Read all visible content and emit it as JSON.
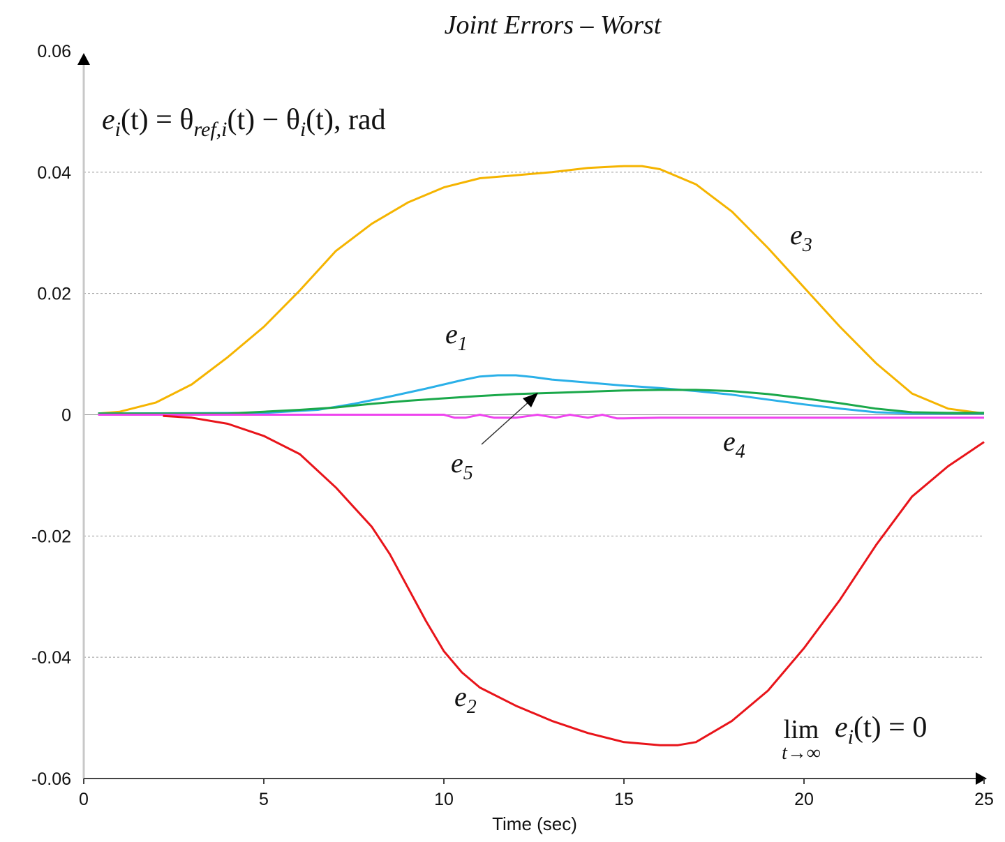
{
  "chart_data": {
    "type": "line",
    "title": "Joint Errors – Worst",
    "xlabel": "Time (sec)",
    "ylabel": "",
    "xlim": [
      0,
      25
    ],
    "ylim": [
      -0.06,
      0.06
    ],
    "xticks": [
      "0",
      "5",
      "10",
      "15",
      "20",
      "25"
    ],
    "yticks": [
      "0.06",
      "0.04",
      "0.02",
      "0",
      "-0.02",
      "-0.04",
      "-0.06"
    ],
    "grid": "horizontal dotted",
    "annotations": {
      "equation_lhs": "e",
      "equation_lhs_sub": "i",
      "equation_mid": "(t) = θ",
      "equation_mid_sub": "ref,i",
      "equation_rhs": "(t) − θ",
      "equation_rhs_sub": "i",
      "equation_tail": "(t), rad",
      "limit_lim": "lim",
      "limit_under": "t→∞",
      "limit_expr": "e",
      "limit_expr_sub": "i",
      "limit_tail": "(t) = 0"
    },
    "series": [
      {
        "name": "e3",
        "label": "e",
        "sub": "3",
        "color": "#f5b400",
        "x": [
          0.4,
          1,
          2,
          3,
          4,
          5,
          6,
          7,
          8,
          9,
          10,
          11,
          12,
          13,
          14,
          15,
          15.5,
          16,
          17,
          18,
          19,
          20,
          21,
          22,
          23,
          24,
          25
        ],
        "y": [
          0.0002,
          0.0005,
          0.002,
          0.005,
          0.0095,
          0.0145,
          0.0205,
          0.027,
          0.0315,
          0.035,
          0.0375,
          0.039,
          0.0395,
          0.04,
          0.0407,
          0.041,
          0.041,
          0.0405,
          0.038,
          0.0335,
          0.0275,
          0.021,
          0.0145,
          0.0085,
          0.0035,
          0.001,
          0.0002
        ]
      },
      {
        "name": "e1",
        "label": "e",
        "sub": "1",
        "color": "#2ab0e8",
        "x": [
          0.4,
          5,
          6.5,
          7.5,
          8.5,
          9.5,
          10.5,
          11,
          11.5,
          12,
          12.5,
          13,
          14,
          15,
          16,
          17,
          18,
          19,
          20,
          21,
          22,
          23,
          24,
          25
        ],
        "y": [
          0.0002,
          0.0003,
          0.0008,
          0.0018,
          0.003,
          0.0043,
          0.0057,
          0.0063,
          0.0065,
          0.0065,
          0.0062,
          0.0058,
          0.0053,
          0.0048,
          0.0044,
          0.0039,
          0.0033,
          0.0025,
          0.0017,
          0.001,
          0.0004,
          0.0002,
          0.0002,
          0.0002
        ]
      },
      {
        "name": "e5",
        "label": "e",
        "sub": "5",
        "color": "#1aa84a",
        "x": [
          0.4,
          4,
          5,
          6,
          7,
          8,
          9,
          10,
          11,
          12,
          13,
          14,
          15,
          16,
          17,
          18,
          19,
          20,
          21,
          22,
          23,
          24,
          25
        ],
        "y": [
          0.0002,
          0.0002,
          0.0005,
          0.0008,
          0.0012,
          0.0018,
          0.0023,
          0.0027,
          0.0031,
          0.0034,
          0.0036,
          0.0038,
          0.004,
          0.0041,
          0.0041,
          0.0039,
          0.0034,
          0.0027,
          0.0019,
          0.001,
          0.0004,
          0.0003,
          0.0003
        ]
      },
      {
        "name": "e4",
        "label": "e",
        "sub": "4",
        "color": "#ee44ee",
        "x": [
          0.4,
          10,
          10.3,
          10.6,
          11,
          11.4,
          12,
          12.6,
          13.1,
          13.5,
          14,
          14.4,
          14.8,
          15,
          16,
          17,
          18,
          19,
          20,
          21,
          22,
          23,
          24,
          25
        ],
        "y": [
          0,
          0,
          -0.0005,
          -0.0005,
          0,
          -0.0005,
          -0.0005,
          0,
          -0.0005,
          0,
          -0.0005,
          0,
          -0.0006,
          -0.0006,
          -0.0005,
          -0.0005,
          -0.0005,
          -0.0005,
          -0.0005,
          -0.0005,
          -0.0005,
          -0.0005,
          -0.0005,
          -0.0005
        ]
      },
      {
        "name": "e2",
        "label": "e",
        "sub": "2",
        "color": "#e8141a",
        "x": [
          2.2,
          3,
          4,
          5,
          6,
          7,
          8,
          8.5,
          9,
          9.5,
          10,
          10.5,
          11,
          12,
          13,
          14,
          15,
          16,
          16.5,
          17,
          18,
          19,
          20,
          21,
          22,
          23,
          24,
          25
        ],
        "y": [
          -0.0002,
          -0.0005,
          -0.0015,
          -0.0035,
          -0.0065,
          -0.012,
          -0.0185,
          -0.023,
          -0.0285,
          -0.034,
          -0.039,
          -0.0425,
          -0.045,
          -0.048,
          -0.0505,
          -0.0525,
          -0.054,
          -0.0545,
          -0.0545,
          -0.054,
          -0.0505,
          -0.0455,
          -0.0385,
          -0.0305,
          -0.0215,
          -0.0135,
          -0.0085,
          -0.0045
        ]
      }
    ]
  }
}
